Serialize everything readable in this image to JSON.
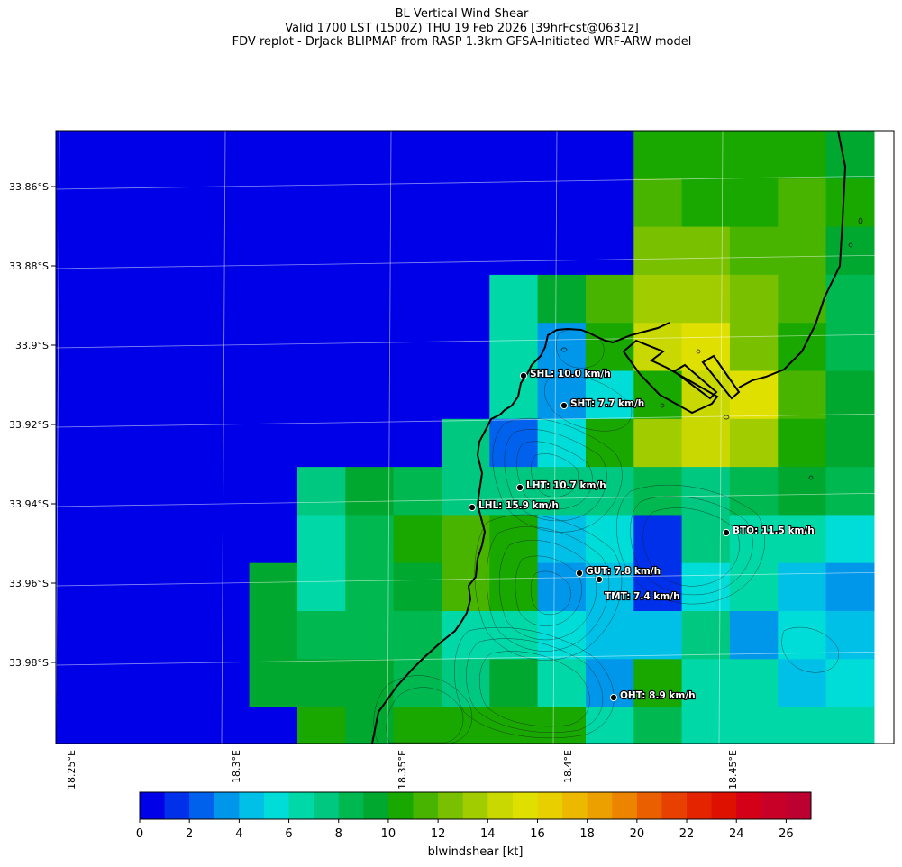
{
  "title": {
    "line1": "BL Vertical Wind Shear",
    "line2": "Valid 1700 LST (1500Z) THU 19 Feb 2026 [39hrFcst@0631z]",
    "line3": "FDV replot - DrJack BLIPMAP from RASP 1.3km GFSA-Initiated WRF-ARW model"
  },
  "axes": {
    "lat_labels": [
      "33.86°S",
      "33.88°S",
      "33.9°S",
      "33.92°S",
      "33.94°S",
      "33.96°S",
      "33.98°S"
    ],
    "lon_labels": [
      "18.25°E",
      "18.3°E",
      "18.35°E",
      "18.4°E",
      "18.45°E"
    ]
  },
  "stations": [
    {
      "code": "SHL",
      "label": "SHL: 10.0 km/h",
      "value_kmh": 10.0
    },
    {
      "code": "SHT",
      "label": "SHT: 7.7 km/h",
      "value_kmh": 7.7
    },
    {
      "code": "LHT",
      "label": "LHT: 10.7 km/h",
      "value_kmh": 10.7
    },
    {
      "code": "LHL",
      "label": "LHL: 15.9 km/h",
      "value_kmh": 15.9
    },
    {
      "code": "BTO",
      "label": "BTO: 11.5 km/h",
      "value_kmh": 11.5
    },
    {
      "code": "GUT",
      "label": "GUT: 7.8 km/h",
      "value_kmh": 7.8
    },
    {
      "code": "TMT",
      "label": "TMT: 7.4 km/h",
      "value_kmh": 7.4
    },
    {
      "code": "OHT",
      "label": "OHT: 8.9 km/h",
      "value_kmh": 8.9
    }
  ],
  "colorbar": {
    "title": "blwindshear [kt]",
    "min": 0,
    "max": 27,
    "step": 1,
    "tick_labels": [
      "0",
      "2",
      "4",
      "6",
      "8",
      "10",
      "12",
      "14",
      "16",
      "18",
      "20",
      "22",
      "24",
      "26"
    ],
    "colors": [
      "#0000e8",
      "#0030ea",
      "#0062ec",
      "#0096ea",
      "#00c0e8",
      "#00dcd8",
      "#00d8a8",
      "#00c880",
      "#00b850",
      "#00a830",
      "#18a800",
      "#48b400",
      "#78c000",
      "#a0cc00",
      "#c8d800",
      "#e0e000",
      "#e8d000",
      "#ecb800",
      "#eca000",
      "#ec8400",
      "#ea6000",
      "#e84000",
      "#e42400",
      "#de1000",
      "#d40018",
      "#c80028",
      "#bc0030"
    ]
  },
  "grid": {
    "rows": 13,
    "cols": 18,
    "values": [
      [
        0,
        0,
        0,
        0,
        0,
        0,
        0,
        0,
        0,
        0,
        0,
        0,
        0,
        10,
        10,
        10,
        10,
        9
      ],
      [
        0,
        0,
        0,
        0,
        0,
        0,
        0,
        0,
        0,
        0,
        0,
        0,
        0,
        11,
        10,
        10,
        11,
        10
      ],
      [
        0,
        0,
        0,
        0,
        0,
        0,
        0,
        0,
        0,
        0,
        0,
        0,
        0,
        12,
        12,
        11,
        11,
        9
      ],
      [
        0,
        0,
        0,
        0,
        0,
        0,
        0,
        0,
        0,
        0,
        6,
        9,
        11,
        13,
        13,
        12,
        11,
        8
      ],
      [
        0,
        0,
        0,
        0,
        0,
        0,
        0,
        0,
        0,
        0,
        6,
        3,
        10,
        14,
        15,
        12,
        10,
        8
      ],
      [
        0,
        0,
        0,
        0,
        0,
        0,
        0,
        0,
        0,
        0,
        6,
        3,
        5,
        10,
        14,
        15,
        11,
        9
      ],
      [
        0,
        0,
        0,
        0,
        0,
        0,
        0,
        0,
        0,
        7,
        2,
        5,
        10,
        13,
        14,
        13,
        10,
        9
      ],
      [
        0,
        0,
        0,
        0,
        0,
        0,
        7,
        9,
        8,
        7,
        7,
        7,
        7,
        8,
        7,
        8,
        9,
        8
      ],
      [
        0,
        0,
        0,
        0,
        0,
        0,
        6,
        8,
        10,
        11,
        10,
        4,
        5,
        1,
        7,
        6,
        6,
        5
      ],
      [
        0,
        0,
        0,
        0,
        0,
        9,
        6,
        8,
        9,
        11,
        10,
        3,
        4,
        1,
        5,
        6,
        4,
        3
      ],
      [
        0,
        0,
        0,
        0,
        0,
        9,
        8,
        8,
        8,
        6,
        6,
        5,
        4,
        4,
        7,
        3,
        5,
        4
      ],
      [
        0,
        0,
        0,
        0,
        0,
        9,
        9,
        9,
        8,
        7,
        9,
        6,
        3,
        10,
        6,
        6,
        4,
        5
      ],
      [
        0,
        0,
        0,
        0,
        0,
        0,
        10,
        9,
        10,
        10,
        10,
        10,
        6,
        8,
        6,
        6,
        6,
        6
      ]
    ]
  }
}
